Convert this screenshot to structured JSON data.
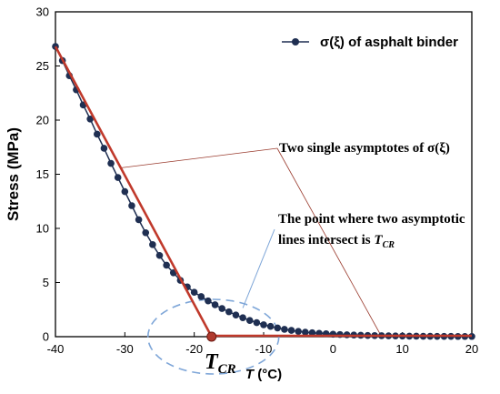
{
  "chart_data": {
    "type": "line",
    "xlabel": "T (°C)",
    "ylabel": "Stress  (MPa)",
    "xlim": [
      -40,
      20
    ],
    "ylim": [
      0,
      30
    ],
    "xticks": [
      -40,
      -30,
      -20,
      -10,
      0,
      10,
      20
    ],
    "yticks": [
      0,
      5,
      10,
      15,
      20,
      25,
      30
    ],
    "grid": false,
    "legend_position": "top-right",
    "series": [
      {
        "name": "σ(ξ)  of asphalt binder",
        "marker": "circle",
        "color": "#1f2f52",
        "x": [
          -40,
          -39,
          -38,
          -37,
          -36,
          -35,
          -34,
          -33,
          -32,
          -31,
          -30,
          -29,
          -28,
          -27,
          -26,
          -25,
          -24,
          -23,
          -22,
          -21,
          -20,
          -19,
          -18,
          -17,
          -16,
          -15,
          -14,
          -13,
          -12,
          -11,
          -10,
          -9,
          -8,
          -7,
          -6,
          -5,
          -4,
          -3,
          -2,
          -1,
          0,
          1,
          2,
          3,
          4,
          5,
          6,
          7,
          8,
          9,
          10,
          11,
          12,
          13,
          14,
          15,
          16,
          17,
          18,
          19,
          20
        ],
        "y": [
          26.8,
          25.5,
          24.1,
          22.8,
          21.4,
          20.1,
          18.7,
          17.4,
          16.0,
          14.7,
          13.4,
          12.1,
          10.8,
          9.6,
          8.5,
          7.5,
          6.6,
          5.9,
          5.2,
          4.6,
          4.1,
          3.7,
          3.3,
          2.95,
          2.6,
          2.3,
          2.0,
          1.75,
          1.5,
          1.3,
          1.1,
          0.95,
          0.8,
          0.68,
          0.58,
          0.49,
          0.42,
          0.36,
          0.31,
          0.27,
          0.23,
          0.2,
          0.17,
          0.15,
          0.13,
          0.11,
          0.1,
          0.09,
          0.08,
          0.07,
          0.06,
          0.05,
          0.05,
          0.04,
          0.04,
          0.03,
          0.03,
          0.03,
          0.02,
          0.02,
          0.02
        ]
      }
    ],
    "asymptotes": {
      "color": "#c0392b",
      "steep_line": {
        "from": [
          -40,
          26.8
        ],
        "to": [
          -17.5,
          0
        ]
      },
      "flat_line": {
        "from": [
          -17.5,
          0
        ],
        "to": [
          20,
          0
        ]
      },
      "intersection": [
        -17.5,
        0
      ]
    },
    "annotations": {
      "asymptotes_label": "Two single asymptotes of σ(ξ)",
      "intersection_line1": "The point where two asymptotic",
      "intersection_line2": "lines intersect is ",
      "intersection_symbol": "T",
      "intersection_subscript": "CR",
      "tcr_symbol": "T",
      "tcr_subscript": "CR"
    }
  }
}
